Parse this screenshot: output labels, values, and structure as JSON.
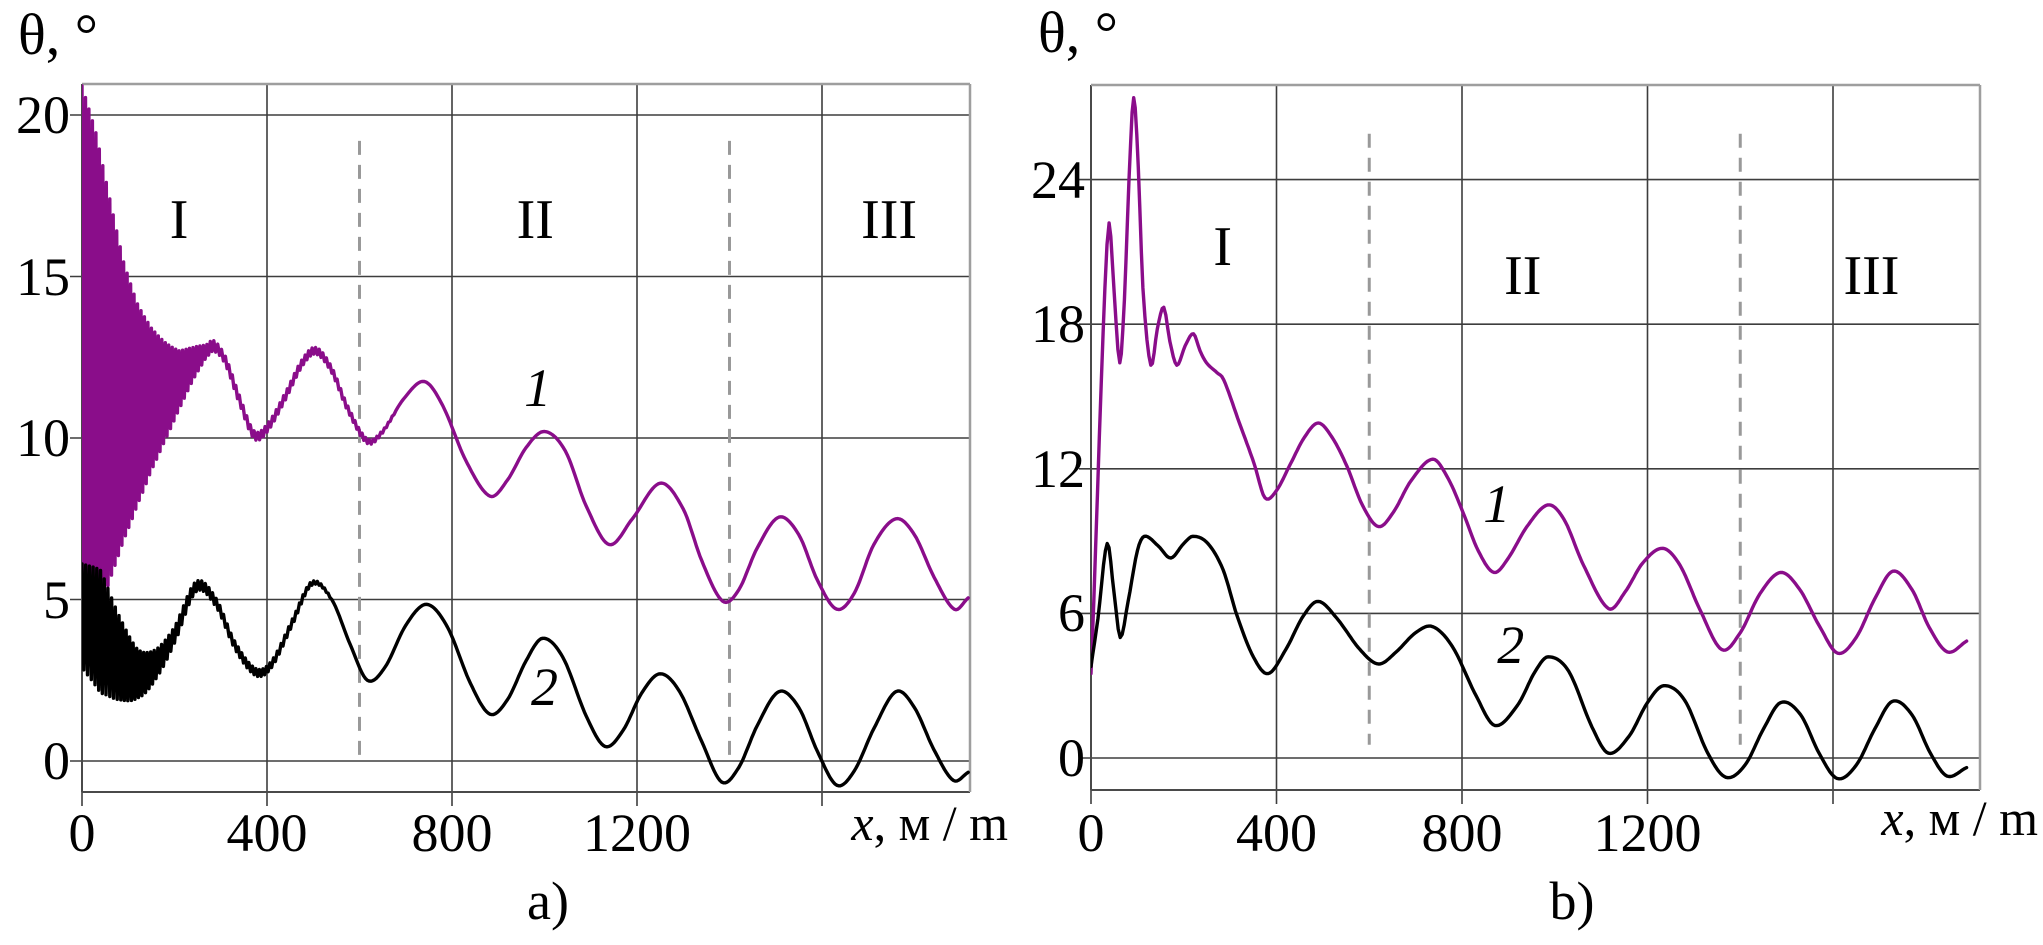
{
  "figure": {
    "colors": {
      "curve1": "#8A0D8A",
      "curve2": "#000000",
      "grid": "#3d3d3d",
      "axis": "#4a4a4a",
      "border_light": "#9e9e9e",
      "separator": "#999999",
      "text": "#000000"
    }
  },
  "chart_data": [
    {
      "type": "line",
      "panel": "a)",
      "ylabel": "θ, °",
      "xlabel_var": "x",
      "xlabel_rest": ", м / m",
      "x_ticks": [
        0,
        400,
        800,
        1200
      ],
      "x_gridlines": [
        400,
        800,
        1200,
        1600
      ],
      "y_ticks": [
        0,
        5,
        10,
        15,
        20
      ],
      "xlim": [
        0,
        1920
      ],
      "ylim": [
        -1,
        21
      ],
      "grid": true,
      "region_separators_x": [
        600,
        1400
      ],
      "separator_span_y": [
        -0.05,
        19.2
      ],
      "regions": [
        {
          "label": "I",
          "x": 210,
          "y": 16.75
        },
        {
          "label": "II",
          "x": 980,
          "y": 16.75
        },
        {
          "label": "III",
          "x": 1745,
          "y": 16.75
        }
      ],
      "curve_labels": [
        {
          "label": "1",
          "x": 985,
          "y": 11.55
        },
        {
          "label": "2",
          "x": 1000,
          "y": 2.3
        }
      ],
      "series": [
        {
          "name": "1",
          "color_key": "curve1",
          "points": [
            [
              0,
              12.1
            ],
            [
              30,
              11.85
            ],
            [
              60,
              11.5
            ],
            [
              90,
              11.15
            ],
            [
              120,
              11.05
            ],
            [
              150,
              11.2
            ],
            [
              180,
              11.45
            ],
            [
              210,
              11.8
            ],
            [
              240,
              12.3
            ],
            [
              270,
              12.7
            ],
            [
              285,
              12.85
            ],
            [
              310,
              12.4
            ],
            [
              340,
              11.2
            ],
            [
              372,
              10.1
            ],
            [
              400,
              10.3
            ],
            [
              440,
              11.3
            ],
            [
              475,
              12.3
            ],
            [
              505,
              12.7
            ],
            [
              540,
              12.1
            ],
            [
              575,
              10.9
            ],
            [
              617,
              9.9
            ],
            [
              650,
              10.2
            ],
            [
              695,
              11.2
            ],
            [
              740,
              11.75
            ],
            [
              780,
              11.0
            ],
            [
              830,
              9.3
            ],
            [
              882,
              8.2
            ],
            [
              920,
              8.7
            ],
            [
              960,
              9.7
            ],
            [
              1000,
              10.2
            ],
            [
              1045,
              9.6
            ],
            [
              1090,
              7.9
            ],
            [
              1140,
              6.7
            ],
            [
              1190,
              7.5
            ],
            [
              1250,
              8.6
            ],
            [
              1300,
              7.8
            ],
            [
              1340,
              6.2
            ],
            [
              1385,
              4.95
            ],
            [
              1420,
              5.3
            ],
            [
              1460,
              6.6
            ],
            [
              1507,
              7.55
            ],
            [
              1550,
              7.0
            ],
            [
              1590,
              5.6
            ],
            [
              1632,
              4.7
            ],
            [
              1670,
              5.2
            ],
            [
              1712,
              6.7
            ],
            [
              1760,
              7.5
            ],
            [
              1800,
              7.0
            ],
            [
              1842,
              5.7
            ],
            [
              1886,
              4.7
            ],
            [
              1916,
              5.05
            ]
          ],
          "band": [
            [
              0,
              8.8
            ],
            [
              30,
              7.6
            ],
            [
              60,
              5.9
            ],
            [
              90,
              4.3
            ],
            [
              120,
              3.1
            ],
            [
              150,
              2.2
            ],
            [
              180,
              1.5
            ],
            [
              210,
              0.9
            ],
            [
              240,
              0.5
            ],
            [
              268,
              0.2
            ],
            [
              300,
              0.13
            ],
            [
              420,
              0.12
            ],
            [
              520,
              0.1
            ],
            [
              620,
              0.07
            ],
            [
              700,
              0
            ]
          ]
        },
        {
          "name": "2",
          "color_key": "curve2",
          "points": [
            [
              0,
              4.5
            ],
            [
              40,
              4.0
            ],
            [
              80,
              3.2
            ],
            [
              122,
              2.7
            ],
            [
              160,
              3.0
            ],
            [
              200,
              3.9
            ],
            [
              247,
              5.4
            ],
            [
              290,
              4.9
            ],
            [
              330,
              3.6
            ],
            [
              376,
              2.75
            ],
            [
              410,
              3.0
            ],
            [
              455,
              4.3
            ],
            [
              497,
              5.5
            ],
            [
              540,
              5.0
            ],
            [
              580,
              3.6
            ],
            [
              617,
              2.5
            ],
            [
              655,
              2.9
            ],
            [
              700,
              4.2
            ],
            [
              745,
              4.85
            ],
            [
              790,
              4.15
            ],
            [
              840,
              2.4
            ],
            [
              882,
              1.45
            ],
            [
              920,
              1.9
            ],
            [
              960,
              3.1
            ],
            [
              996,
              3.8
            ],
            [
              1040,
              3.2
            ],
            [
              1090,
              1.4
            ],
            [
              1131,
              0.45
            ],
            [
              1170,
              0.95
            ],
            [
              1210,
              2.1
            ],
            [
              1250,
              2.7
            ],
            [
              1292,
              2.15
            ],
            [
              1340,
              0.6
            ],
            [
              1383,
              -0.65
            ],
            [
              1420,
              -0.2
            ],
            [
              1460,
              1.1
            ],
            [
              1507,
              2.15
            ],
            [
              1550,
              1.65
            ],
            [
              1590,
              0.3
            ],
            [
              1632,
              -0.75
            ],
            [
              1670,
              -0.3
            ],
            [
              1712,
              1.0
            ],
            [
              1760,
              2.15
            ],
            [
              1800,
              1.65
            ],
            [
              1842,
              0.35
            ],
            [
              1884,
              -0.6
            ],
            [
              1916,
              -0.35
            ]
          ],
          "band": [
            [
              0,
              1.6
            ],
            [
              40,
              1.9
            ],
            [
              80,
              1.3
            ],
            [
              120,
              0.75
            ],
            [
              160,
              0.45
            ],
            [
              200,
              0.25
            ],
            [
              250,
              0.15
            ],
            [
              320,
              0.12
            ],
            [
              450,
              0.1
            ],
            [
              560,
              0
            ]
          ]
        }
      ]
    },
    {
      "type": "line",
      "panel": "b)",
      "ylabel": "θ, °",
      "xlabel_var": "x",
      "xlabel_rest": ", м / m",
      "x_ticks": [
        0,
        400,
        800,
        1200
      ],
      "x_gridlines": [
        400,
        800,
        1200,
        1600
      ],
      "y_ticks": [
        0,
        6,
        12,
        18,
        24
      ],
      "xlim": [
        0,
        1917
      ],
      "ylim": [
        -1.3,
        27.9
      ],
      "grid": true,
      "region_separators_x": [
        600,
        1400
      ],
      "separator_span_y": [
        0.55,
        25.9
      ],
      "regions": [
        {
          "label": "I",
          "x": 284,
          "y": 21.2
        },
        {
          "label": "II",
          "x": 931,
          "y": 20.0
        },
        {
          "label": "III",
          "x": 1683,
          "y": 20.0
        }
      ],
      "curve_labels": [
        {
          "label": "1",
          "x": 875,
          "y": 10.55
        },
        {
          "label": "2",
          "x": 905,
          "y": 4.7
        }
      ],
      "series": [
        {
          "name": "1",
          "color_key": "curve1",
          "points": [
            [
              0,
              3.5
            ],
            [
              6,
              6.5
            ],
            [
              14,
              11.0
            ],
            [
              22,
              15.5
            ],
            [
              30,
              19.5
            ],
            [
              39,
              22.2
            ],
            [
              50,
              19.3
            ],
            [
              62,
              16.4
            ],
            [
              72,
              19.0
            ],
            [
              82,
              24.0
            ],
            [
              92,
              27.4
            ],
            [
              102,
              24.5
            ],
            [
              112,
              19.5
            ],
            [
              129,
              16.3
            ],
            [
              143,
              17.8
            ],
            [
              157,
              18.7
            ],
            [
              170,
              17.3
            ],
            [
              185,
              16.3
            ],
            [
              203,
              17.1
            ],
            [
              221,
              17.6
            ],
            [
              235,
              16.9
            ],
            [
              249,
              16.4
            ],
            [
              271,
              16.0
            ],
            [
              286,
              15.7
            ],
            [
              320,
              13.9
            ],
            [
              352,
              12.2
            ],
            [
              375,
              10.8
            ],
            [
              400,
              11.1
            ],
            [
              430,
              12.2
            ],
            [
              460,
              13.3
            ],
            [
              490,
              13.9
            ],
            [
              520,
              13.3
            ],
            [
              552,
              12.1
            ],
            [
              585,
              10.5
            ],
            [
              620,
              9.6
            ],
            [
              652,
              10.2
            ],
            [
              690,
              11.5
            ],
            [
              737,
              12.4
            ],
            [
              770,
              11.6
            ],
            [
              802,
              10.2
            ],
            [
              835,
              8.6
            ],
            [
              869,
              7.7
            ],
            [
              900,
              8.3
            ],
            [
              940,
              9.6
            ],
            [
              985,
              10.5
            ],
            [
              1020,
              9.9
            ],
            [
              1062,
              8.0
            ],
            [
              1116,
              6.2
            ],
            [
              1152,
              6.9
            ],
            [
              1190,
              8.1
            ],
            [
              1233,
              8.7
            ],
            [
              1270,
              8.0
            ],
            [
              1312,
              6.2
            ],
            [
              1360,
              4.5
            ],
            [
              1400,
              5.2
            ],
            [
              1442,
              6.8
            ],
            [
              1487,
              7.7
            ],
            [
              1528,
              7.0
            ],
            [
              1570,
              5.5
            ],
            [
              1610,
              4.35
            ],
            [
              1650,
              5.0
            ],
            [
              1690,
              6.6
            ],
            [
              1729,
              7.75
            ],
            [
              1770,
              7.0
            ],
            [
              1808,
              5.4
            ],
            [
              1847,
              4.4
            ],
            [
              1888,
              4.85
            ]
          ],
          "band": []
        },
        {
          "name": "2",
          "color_key": "curve2",
          "points": [
            [
              0,
              3.8
            ],
            [
              15,
              5.8
            ],
            [
              35,
              8.9
            ],
            [
              50,
              6.8
            ],
            [
              63,
              5.0
            ],
            [
              80,
              6.5
            ],
            [
              100,
              8.6
            ],
            [
              115,
              9.2
            ],
            [
              145,
              8.8
            ],
            [
              172,
              8.3
            ],
            [
              200,
              8.9
            ],
            [
              220,
              9.2
            ],
            [
              252,
              8.9
            ],
            [
              285,
              7.8
            ],
            [
              315,
              5.9
            ],
            [
              350,
              4.2
            ],
            [
              382,
              3.5
            ],
            [
              420,
              4.5
            ],
            [
              458,
              5.9
            ],
            [
              490,
              6.5
            ],
            [
              530,
              5.8
            ],
            [
              580,
              4.5
            ],
            [
              620,
              3.9
            ],
            [
              658,
              4.4
            ],
            [
              700,
              5.2
            ],
            [
              737,
              5.45
            ],
            [
              780,
              4.6
            ],
            [
              830,
              2.6
            ],
            [
              871,
              1.35
            ],
            [
              920,
              2.2
            ],
            [
              958,
              3.6
            ],
            [
              986,
              4.2
            ],
            [
              1030,
              3.6
            ],
            [
              1080,
              1.3
            ],
            [
              1116,
              0.2
            ],
            [
              1160,
              0.9
            ],
            [
              1200,
              2.3
            ],
            [
              1235,
              3.0
            ],
            [
              1280,
              2.4
            ],
            [
              1330,
              0.2
            ],
            [
              1369,
              -0.8
            ],
            [
              1410,
              -0.3
            ],
            [
              1450,
              1.2
            ],
            [
              1487,
              2.3
            ],
            [
              1530,
              1.8
            ],
            [
              1570,
              0.2
            ],
            [
              1609,
              -0.85
            ],
            [
              1650,
              -0.3
            ],
            [
              1690,
              1.2
            ],
            [
              1728,
              2.35
            ],
            [
              1770,
              1.8
            ],
            [
              1810,
              0.2
            ],
            [
              1846,
              -0.75
            ],
            [
              1888,
              -0.4
            ]
          ],
          "band": []
        }
      ]
    }
  ]
}
